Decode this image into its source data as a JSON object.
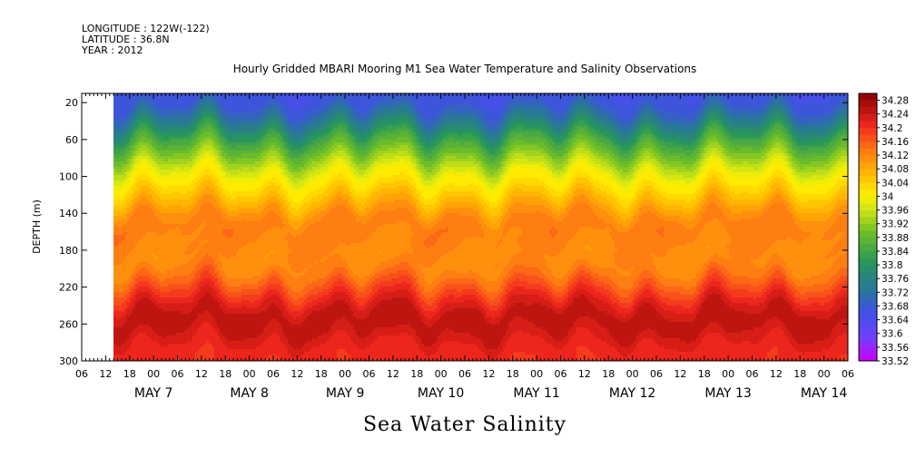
{
  "header": {
    "longitude": "LONGITUDE : 122W(-122)",
    "latitude": "LATITUDE : 36.8N",
    "year": "YEAR : 2012"
  },
  "chart_data": {
    "type": "heatmap",
    "title": "Hourly Gridded MBARI Mooring M1 Sea Water Temperature and Salinity Observations",
    "xlabel": "",
    "ylabel": "DEPTH (m)",
    "caption": "Sea Water Salinity",
    "y_axis": {
      "ticks": [
        20,
        60,
        100,
        140,
        180,
        220,
        260,
        300
      ],
      "range": [
        10,
        300
      ],
      "inverted": true
    },
    "x_axis": {
      "range": [
        "2012-05-06T06:00",
        "2012-05-14T06:00"
      ],
      "hour_ticks": [
        "06",
        "12",
        "18",
        "00",
        "06",
        "12",
        "18",
        "00",
        "06",
        "12",
        "18",
        "00",
        "06",
        "12",
        "18",
        "00",
        "06",
        "12",
        "18",
        "00",
        "06",
        "12",
        "18",
        "00",
        "06",
        "12",
        "18",
        "00",
        "06",
        "12",
        "18",
        "00",
        "06"
      ],
      "date_labels": [
        "MAY  7",
        "MAY  8",
        "MAY  9",
        "MAY 10",
        "MAY 11",
        "MAY 12",
        "MAY 13",
        "MAY 14"
      ],
      "data_start": "2012-05-06T14:00"
    },
    "depth_profile": {
      "depth": [
        10,
        20,
        30,
        40,
        50,
        60,
        70,
        80,
        90,
        100,
        110,
        120,
        130,
        140,
        150,
        160,
        170,
        180,
        190,
        200,
        210,
        220,
        230,
        240,
        250,
        260,
        270,
        280,
        290,
        300
      ],
      "salinity": [
        33.66,
        33.67,
        33.7,
        33.74,
        33.79,
        33.84,
        33.88,
        33.92,
        33.96,
        34.0,
        34.02,
        34.05,
        34.08,
        34.11,
        34.13,
        34.13,
        34.12,
        34.12,
        34.11,
        34.12,
        34.14,
        34.17,
        34.2,
        34.23,
        34.25,
        34.25,
        34.24,
        34.22,
        34.21,
        34.2
      ]
    },
    "colorbar": {
      "min": 33.52,
      "max": 34.3,
      "step": 0.02,
      "labels": [
        "34.28",
        "34.24",
        "34.2",
        "34.16",
        "34.12",
        "34.08",
        "34.04",
        "34",
        "33.96",
        "33.92",
        "33.88",
        "33.84",
        "33.8",
        "33.76",
        "33.72",
        "33.68",
        "33.64",
        "33.6",
        "33.56",
        "33.52"
      ]
    }
  }
}
